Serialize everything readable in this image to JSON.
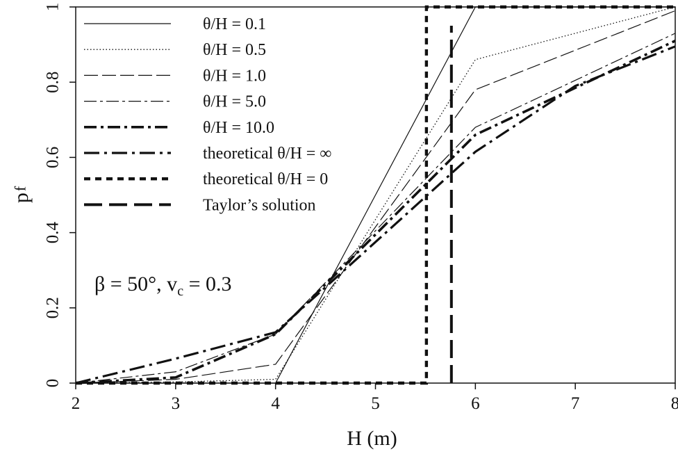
{
  "chart_data": {
    "type": "line",
    "xlabel": "H (m)",
    "ylabel": "p",
    "ylabel_subscript": "f",
    "xlim": [
      2,
      8
    ],
    "ylim": [
      0,
      1
    ],
    "x_ticks": [
      2,
      3,
      4,
      5,
      6,
      7,
      8
    ],
    "y_ticks": [
      0,
      0.2,
      0.4,
      0.6,
      0.8,
      1
    ],
    "x_tick_labels": [
      "2",
      "3",
      "4",
      "5",
      "6",
      "7",
      "8"
    ],
    "y_tick_labels": [
      "0",
      "0.2",
      "0.4",
      "0.6",
      "0.8",
      "1"
    ],
    "grid": false,
    "legend_position": "top-left",
    "annotation": {
      "beta_part": "β = 50°, v",
      "subscript": "c",
      "tail": " = 0.3"
    },
    "series": [
      {
        "name": "θ/H = 0.1",
        "style": "thin-solid",
        "x": [
          2,
          3,
          4,
          6,
          8
        ],
        "y": [
          0,
          0,
          0,
          1.0,
          1.0
        ]
      },
      {
        "name": "θ/H = 0.5",
        "style": "dotted",
        "x": [
          2,
          3,
          4,
          6,
          8
        ],
        "y": [
          0,
          0.003,
          0.01,
          0.86,
          1.0
        ]
      },
      {
        "name": "θ/H = 1.0",
        "style": "long-dash",
        "x": [
          2,
          3,
          4,
          6,
          8
        ],
        "y": [
          0,
          0.01,
          0.05,
          0.78,
          0.99
        ]
      },
      {
        "name": "θ/H = 5.0",
        "style": "dash-dot-thin",
        "x": [
          2,
          3,
          4,
          6,
          8
        ],
        "y": [
          0,
          0.03,
          0.13,
          0.68,
          0.93
        ]
      },
      {
        "name": "θ/H = 10.0",
        "style": "dash-dot-thick",
        "x": [
          2,
          3,
          4,
          6,
          8
        ],
        "y": [
          0,
          0.015,
          0.13,
          0.66,
          0.91
        ]
      },
      {
        "name": "theoretical θ/H = ∞",
        "style": "dash-dot-heavy",
        "x": [
          2,
          3,
          4,
          6,
          7,
          8
        ],
        "y": [
          0,
          0.065,
          0.135,
          0.615,
          0.79,
          0.895
        ]
      },
      {
        "name": "theoretical θ/H = 0",
        "style": "dashed-heavy",
        "x": [
          2,
          5.51,
          5.51,
          8
        ],
        "y": [
          0,
          0,
          1,
          1
        ]
      },
      {
        "name": "Taylor’s solution",
        "style": "long-dash-heavy",
        "x": [
          5.76,
          5.76
        ],
        "y": [
          0,
          0.95
        ]
      }
    ]
  }
}
